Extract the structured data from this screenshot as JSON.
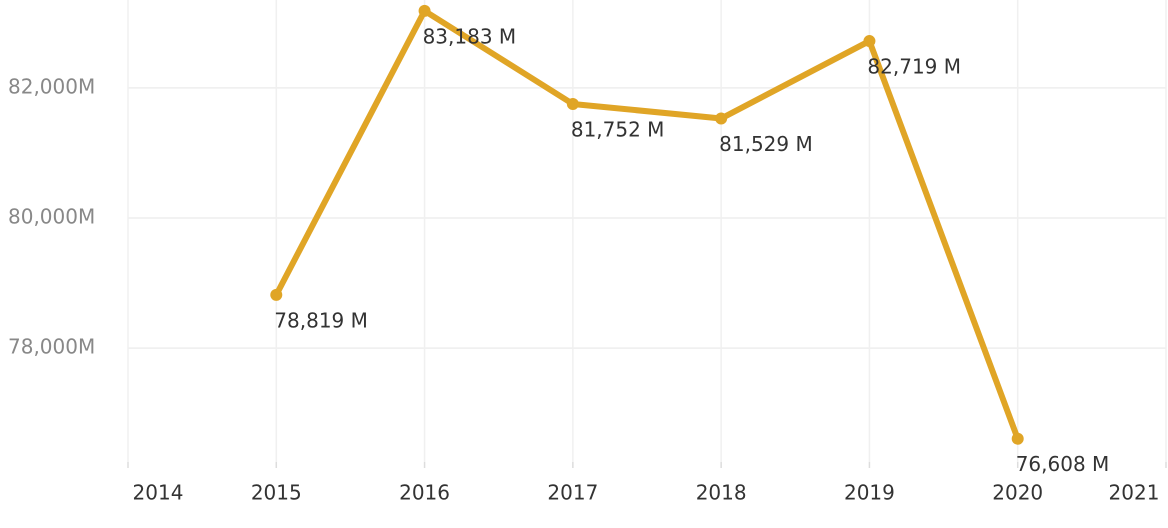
{
  "chart_data": {
    "type": "line",
    "x": [
      2015,
      2016,
      2017,
      2018,
      2019,
      2020
    ],
    "series": [
      {
        "color": "#e0a526",
        "values": [
          78819,
          83183,
          81752,
          81529,
          82719,
          76608
        ],
        "value_labels": [
          "78,819 M",
          "83,183 M",
          "81,752 M",
          "81,529 M",
          "82,719 M",
          "76,608 M"
        ]
      }
    ],
    "xlim": [
      2014,
      2021
    ],
    "xticks": [
      2014,
      2015,
      2016,
      2017,
      2018,
      2019,
      2020,
      2021
    ],
    "ylim": [
      76250,
      83350
    ],
    "yticks": [
      {
        "value": 78000,
        "label": "78,000M"
      },
      {
        "value": 80000,
        "label": "80,000M"
      },
      {
        "value": 82000,
        "label": "82,000M"
      }
    ],
    "grid": true
  }
}
